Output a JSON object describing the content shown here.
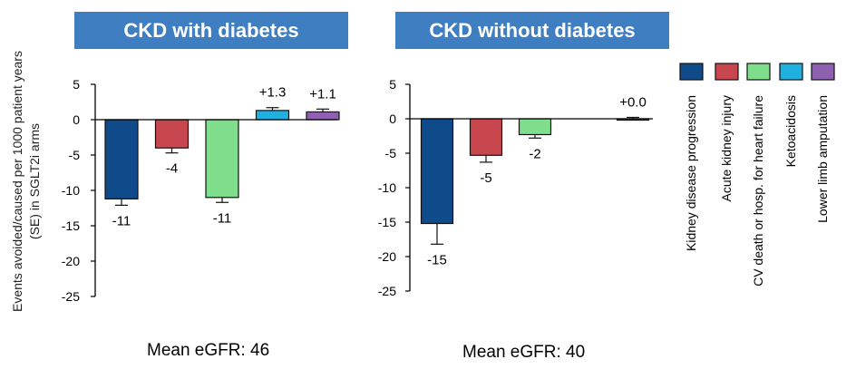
{
  "legend": [
    {
      "label": "Kidney disease progression",
      "color": "#0f4a8a"
    },
    {
      "label": "Acute kidney injury",
      "color": "#c8474f"
    },
    {
      "label": "CV death or hosp. for heart failure",
      "color": "#7ede8b"
    },
    {
      "label": "Ketoacidosis",
      "color": "#1fb0e0"
    },
    {
      "label": "Lower limb amputation",
      "color": "#8e61b0"
    }
  ],
  "y_axis_label": "Events avoided/caused per 1000 patient years (SE) in SGLT2i arms",
  "chart_data": [
    {
      "type": "bar",
      "title": "CKD with diabetes",
      "xlabel": "Mean eGFR: 46",
      "ylabel": "Events avoided/caused per 1000 patient years (SE) in SGLT2i arms",
      "ylim": [
        -25,
        5
      ],
      "yticks": [
        5,
        0,
        -5,
        -10,
        -15,
        -20,
        -25
      ],
      "categories": [
        "Kidney disease progression",
        "Acute kidney injury",
        "CV death or hosp. for heart failure",
        "Ketoacidosis",
        "Lower limb amputation"
      ],
      "values": [
        -11.2,
        -4.0,
        -11.0,
        1.3,
        1.1
      ],
      "errors": [
        0.9,
        0.7,
        0.7,
        0.4,
        0.4
      ],
      "data_labels": [
        "-11",
        "-4",
        "-11",
        "+1.3",
        "+1.1"
      ],
      "grid": false
    },
    {
      "type": "bar",
      "title": "CKD without diabetes",
      "xlabel": "Mean eGFR: 40",
      "ylim": [
        -25,
        5
      ],
      "yticks": [
        5,
        0,
        -5,
        -10,
        -15,
        -20,
        -25
      ],
      "categories": [
        "Kidney disease progression",
        "Acute kidney injury",
        "CV death or hosp. for heart failure",
        "Ketoacidosis",
        "Lower limb amputation"
      ],
      "values": [
        -15.2,
        -5.3,
        -2.3,
        null,
        0.0
      ],
      "errors": [
        3.0,
        1.0,
        0.5,
        null,
        0.2
      ],
      "data_labels": [
        "-15",
        "-5",
        "-2",
        "",
        "+0.0"
      ],
      "grid": false
    }
  ]
}
